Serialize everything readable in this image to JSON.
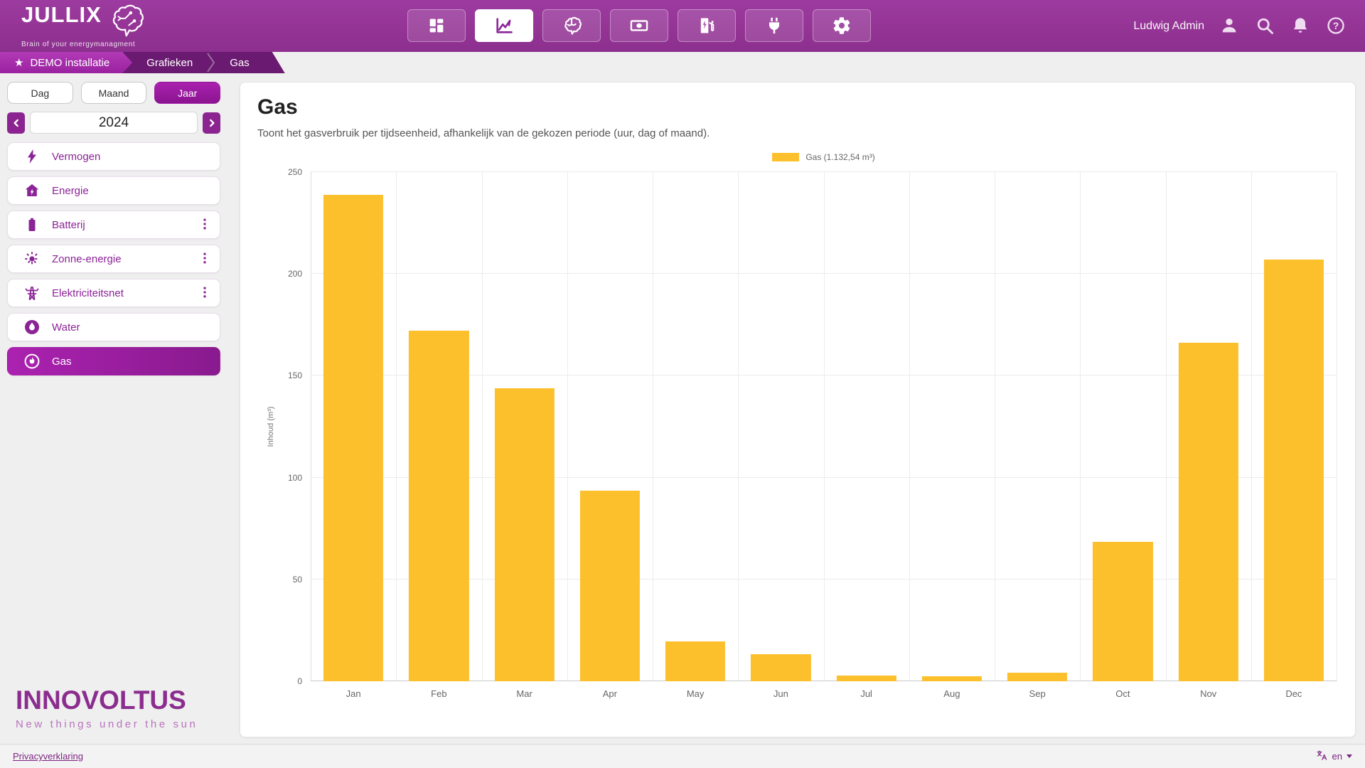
{
  "header": {
    "logo": {
      "brand": "JULLIX",
      "tagline": "Brain of your energymanagment"
    },
    "nav_icons": [
      {
        "name": "dashboard-grid-icon",
        "active": false
      },
      {
        "name": "line-chart-icon",
        "active": true
      },
      {
        "name": "brain-icon",
        "active": false
      },
      {
        "name": "money-icon",
        "active": false
      },
      {
        "name": "charging-station-icon",
        "active": false
      },
      {
        "name": "plug-icon",
        "active": false
      },
      {
        "name": "settings-gear-icon",
        "active": false
      }
    ],
    "user": {
      "name": "Ludwig Admin"
    },
    "user_icons": [
      "person-icon",
      "search-icon",
      "bell-icon",
      "help-icon"
    ]
  },
  "breadcrumb": {
    "items": [
      {
        "label": "DEMO installatie",
        "starred": true
      },
      {
        "label": "Grafieken",
        "starred": false
      },
      {
        "label": "Gas",
        "starred": false
      }
    ]
  },
  "sidebar": {
    "period_tabs": [
      {
        "label": "Dag",
        "active": false
      },
      {
        "label": "Maand",
        "active": false
      },
      {
        "label": "Jaar",
        "active": true
      }
    ],
    "year": "2024",
    "items": [
      {
        "label": "Vermogen",
        "icon": "lightning-icon",
        "menu": false,
        "active": false
      },
      {
        "label": "Energie",
        "icon": "house-energy-icon",
        "menu": false,
        "active": false
      },
      {
        "label": "Batterij",
        "icon": "battery-icon",
        "menu": true,
        "active": false
      },
      {
        "label": "Zonne-energie",
        "icon": "sun-icon",
        "menu": true,
        "active": false
      },
      {
        "label": "Elektriciteitsnet",
        "icon": "pylon-icon",
        "menu": true,
        "active": false
      },
      {
        "label": "Water",
        "icon": "water-drop-icon",
        "menu": false,
        "active": false
      },
      {
        "label": "Gas",
        "icon": "gas-flame-icon",
        "menu": false,
        "active": true
      }
    ],
    "footer_logo": {
      "brand": "INNOVOLTUS",
      "tagline": "New things under the sun"
    }
  },
  "main": {
    "title": "Gas",
    "subtitle": "Toont het gasverbruik per tijdseenheid, afhankelijk van de gekozen periode (uur, dag of maand)."
  },
  "chart_data": {
    "type": "bar",
    "title": "",
    "xlabel": "",
    "ylabel": "Inhoud (m³)",
    "categories": [
      "Jan",
      "Feb",
      "Mar",
      "Apr",
      "May",
      "Jun",
      "Jul",
      "Aug",
      "Sep",
      "Oct",
      "Nov",
      "Dec"
    ],
    "values": [
      239.0,
      172.3,
      143.8,
      93.7,
      19.4,
      13.4,
      2.9,
      2.3,
      4.1,
      68.4,
      166.2,
      206.9
    ],
    "series_label": "Gas (1.132,54 m³)",
    "ylim": [
      0,
      250
    ],
    "ytick_step": 50,
    "grid": true,
    "legend_position": "top",
    "bar_color": "#fdc02d"
  },
  "footer": {
    "privacy_link": "Privacyverklaring",
    "language": "en"
  },
  "colors": {
    "header_purple": "#963797",
    "breadcrumb_purple": "#6a1a70",
    "accent_purple": "#8b2496",
    "accent_bright": "#a92fae",
    "bar_yellow": "#fdc02d",
    "link_purple": "#7d2382"
  }
}
